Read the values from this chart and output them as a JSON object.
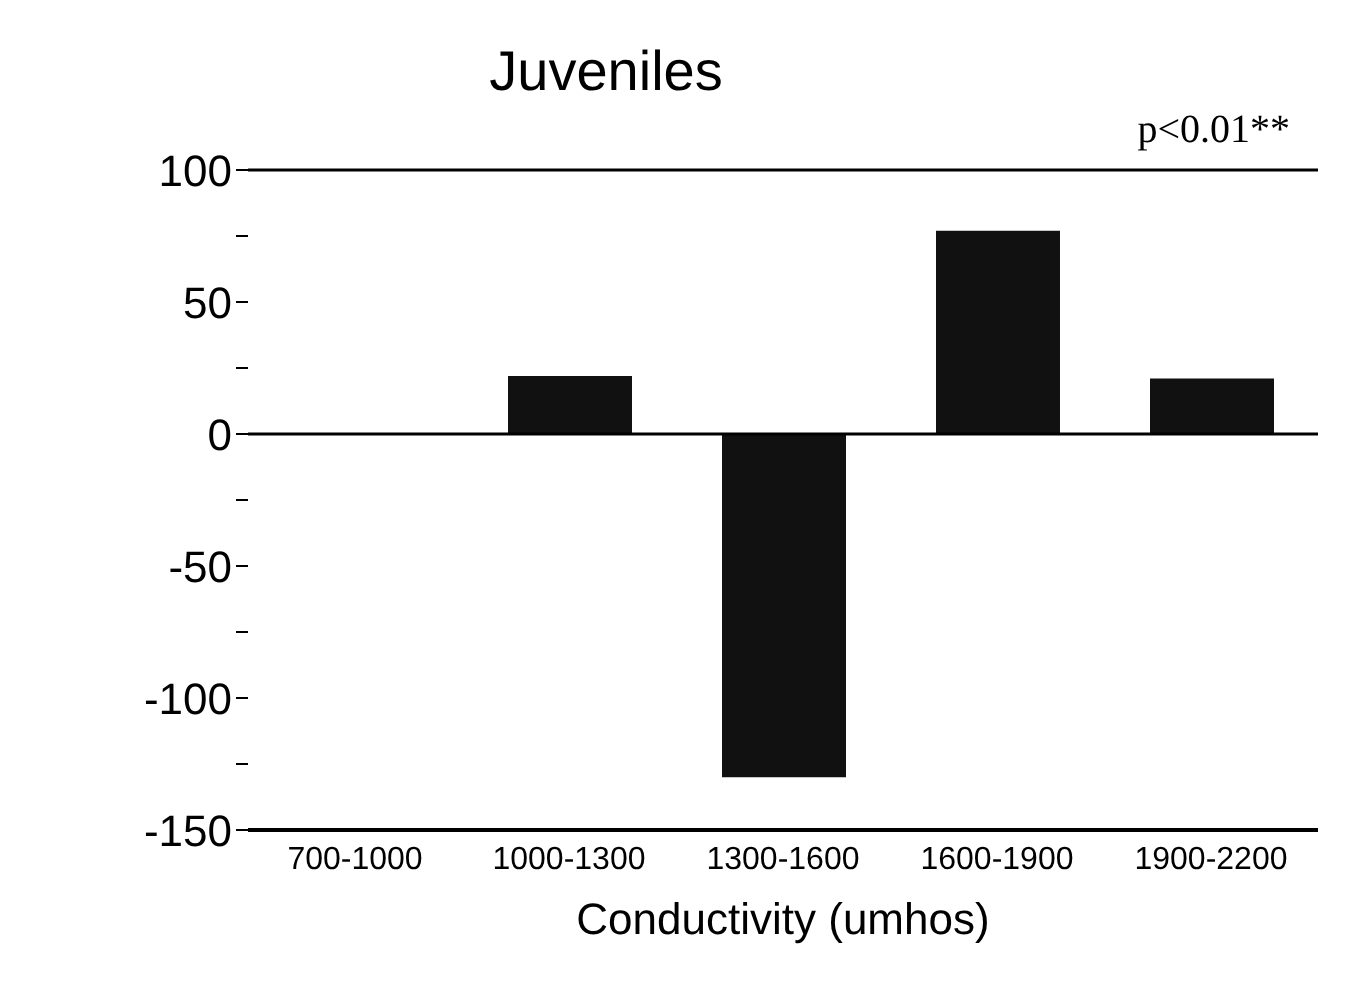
{
  "chart_data": {
    "type": "bar",
    "title": "Juveniles",
    "xlabel": "Conductivity (umhos)",
    "categories": [
      "700-1000",
      "1000-1300",
      "1300-1600",
      "1600-1900",
      "1900-2200"
    ],
    "values": [
      0,
      22,
      -130,
      77,
      21
    ],
    "color": "#111111",
    "ylim": [
      -150,
      100
    ],
    "yticks": [
      -150,
      {
        "value": -125,
        "label": null
      },
      -100,
      {
        "value": -75,
        "label": null
      },
      -50,
      {
        "value": -25,
        "label": null
      },
      0,
      {
        "value": 25,
        "label": null
      },
      50,
      {
        "value": 75,
        "label": null
      },
      100
    ],
    "annotations": [
      "p<0.01**"
    ],
    "ref_lines": [
      {
        "axis": "y",
        "value": 0,
        "label": null
      }
    ],
    "grid": false
  }
}
